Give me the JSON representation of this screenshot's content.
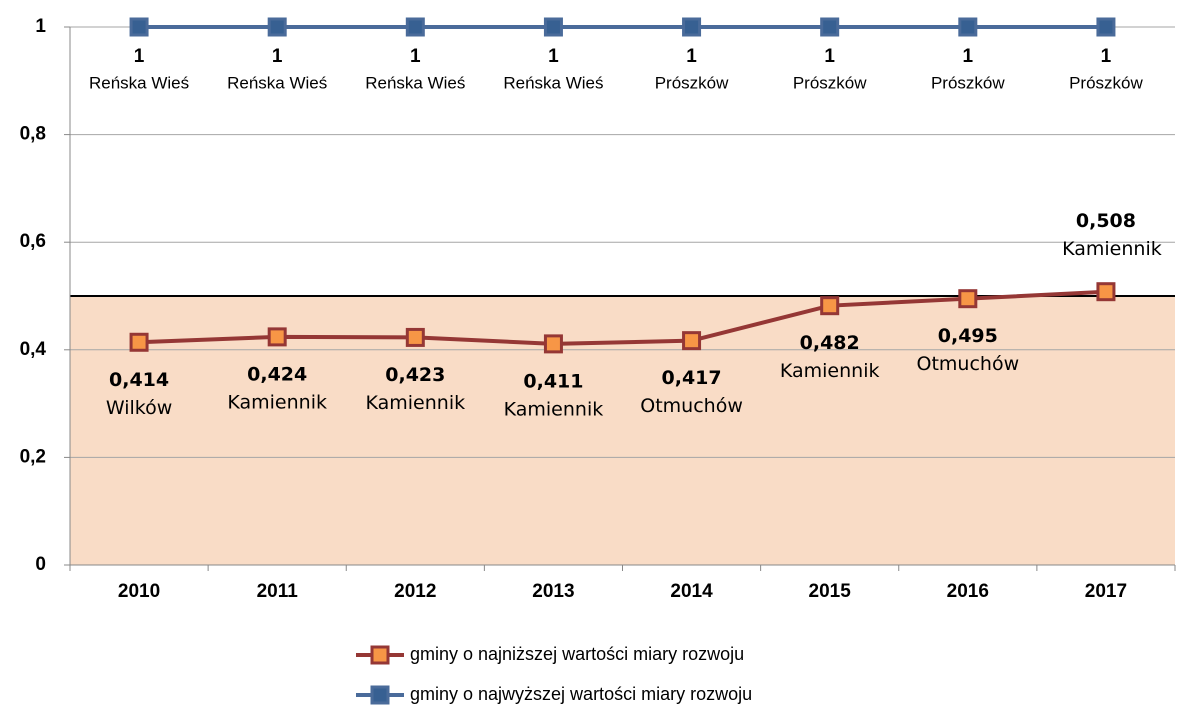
{
  "chart_data": {
    "type": "line",
    "categories": [
      "2010",
      "2011",
      "2012",
      "2013",
      "2014",
      "2015",
      "2016",
      "2017"
    ],
    "series": [
      {
        "name": "gminy o najniższej wartości miary rozwoju",
        "color": "#953735",
        "marker_color": "#f79646",
        "values": [
          0.414,
          0.424,
          0.423,
          0.411,
          0.417,
          0.482,
          0.495,
          0.508
        ],
        "value_labels": [
          "0,414",
          "0,424",
          "0,423",
          "0,411",
          "0,417",
          "0,482",
          "0,495",
          "0,508"
        ],
        "point_labels": [
          "Wilków",
          "Kamiennik",
          "Kamiennik",
          "Kamiennik",
          "Otmuchów",
          "Kamiennik",
          "Otmuchów",
          "Kamiennik"
        ]
      },
      {
        "name": "gminy o najwyższej wartości miary rozwoju",
        "color": "#4a6b9a",
        "marker_color": "#376092",
        "values": [
          1,
          1,
          1,
          1,
          1,
          1,
          1,
          1
        ],
        "point_labels": [
          "Reńska Wieś",
          "Reńska Wieś",
          "Reńska Wieś",
          "Reńska Wieś",
          "Prószków",
          "Prószków",
          "Prószków",
          "Prószków"
        ]
      }
    ],
    "ylim": [
      0,
      1
    ],
    "yticks": [
      0,
      {
        "value": 0.2,
        "label": "0,2"
      },
      {
        "value": 0.4,
        "label": "0,4"
      },
      {
        "value": 0.6,
        "label": "0,6"
      },
      {
        "value": 0.8,
        "label": "0,8"
      },
      1
    ],
    "grid": true,
    "reference_line": 0.5,
    "reference_band_color": "#f9dcc6",
    "legend": "bottom"
  }
}
